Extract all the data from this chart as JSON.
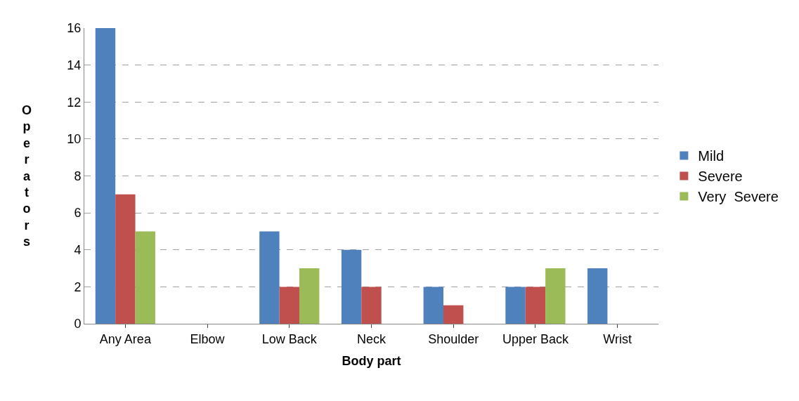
{
  "chart_data": {
    "type": "bar",
    "xlabel": "Body part",
    "ylabel": "Operators",
    "categories": [
      "Any Area",
      "Elbow",
      "Low Back",
      "Neck",
      "Shoulder",
      "Upper Back",
      "Wrist"
    ],
    "series": [
      {
        "name": "Mild",
        "color": "#4f81bd",
        "values": [
          16,
          0,
          5,
          4,
          2,
          2,
          3
        ]
      },
      {
        "name": "Severe",
        "color": "#c0504d",
        "values": [
          7,
          0,
          2,
          2,
          1,
          2,
          0
        ]
      },
      {
        "name": "Very  Severe",
        "color": "#9bbb59",
        "values": [
          5,
          0,
          3,
          0,
          0,
          3,
          0
        ]
      }
    ],
    "ylim": [
      0,
      16
    ],
    "yticks": [
      0,
      2,
      4,
      6,
      8,
      10,
      12,
      14,
      16
    ],
    "grid": "y",
    "legend": "right"
  }
}
